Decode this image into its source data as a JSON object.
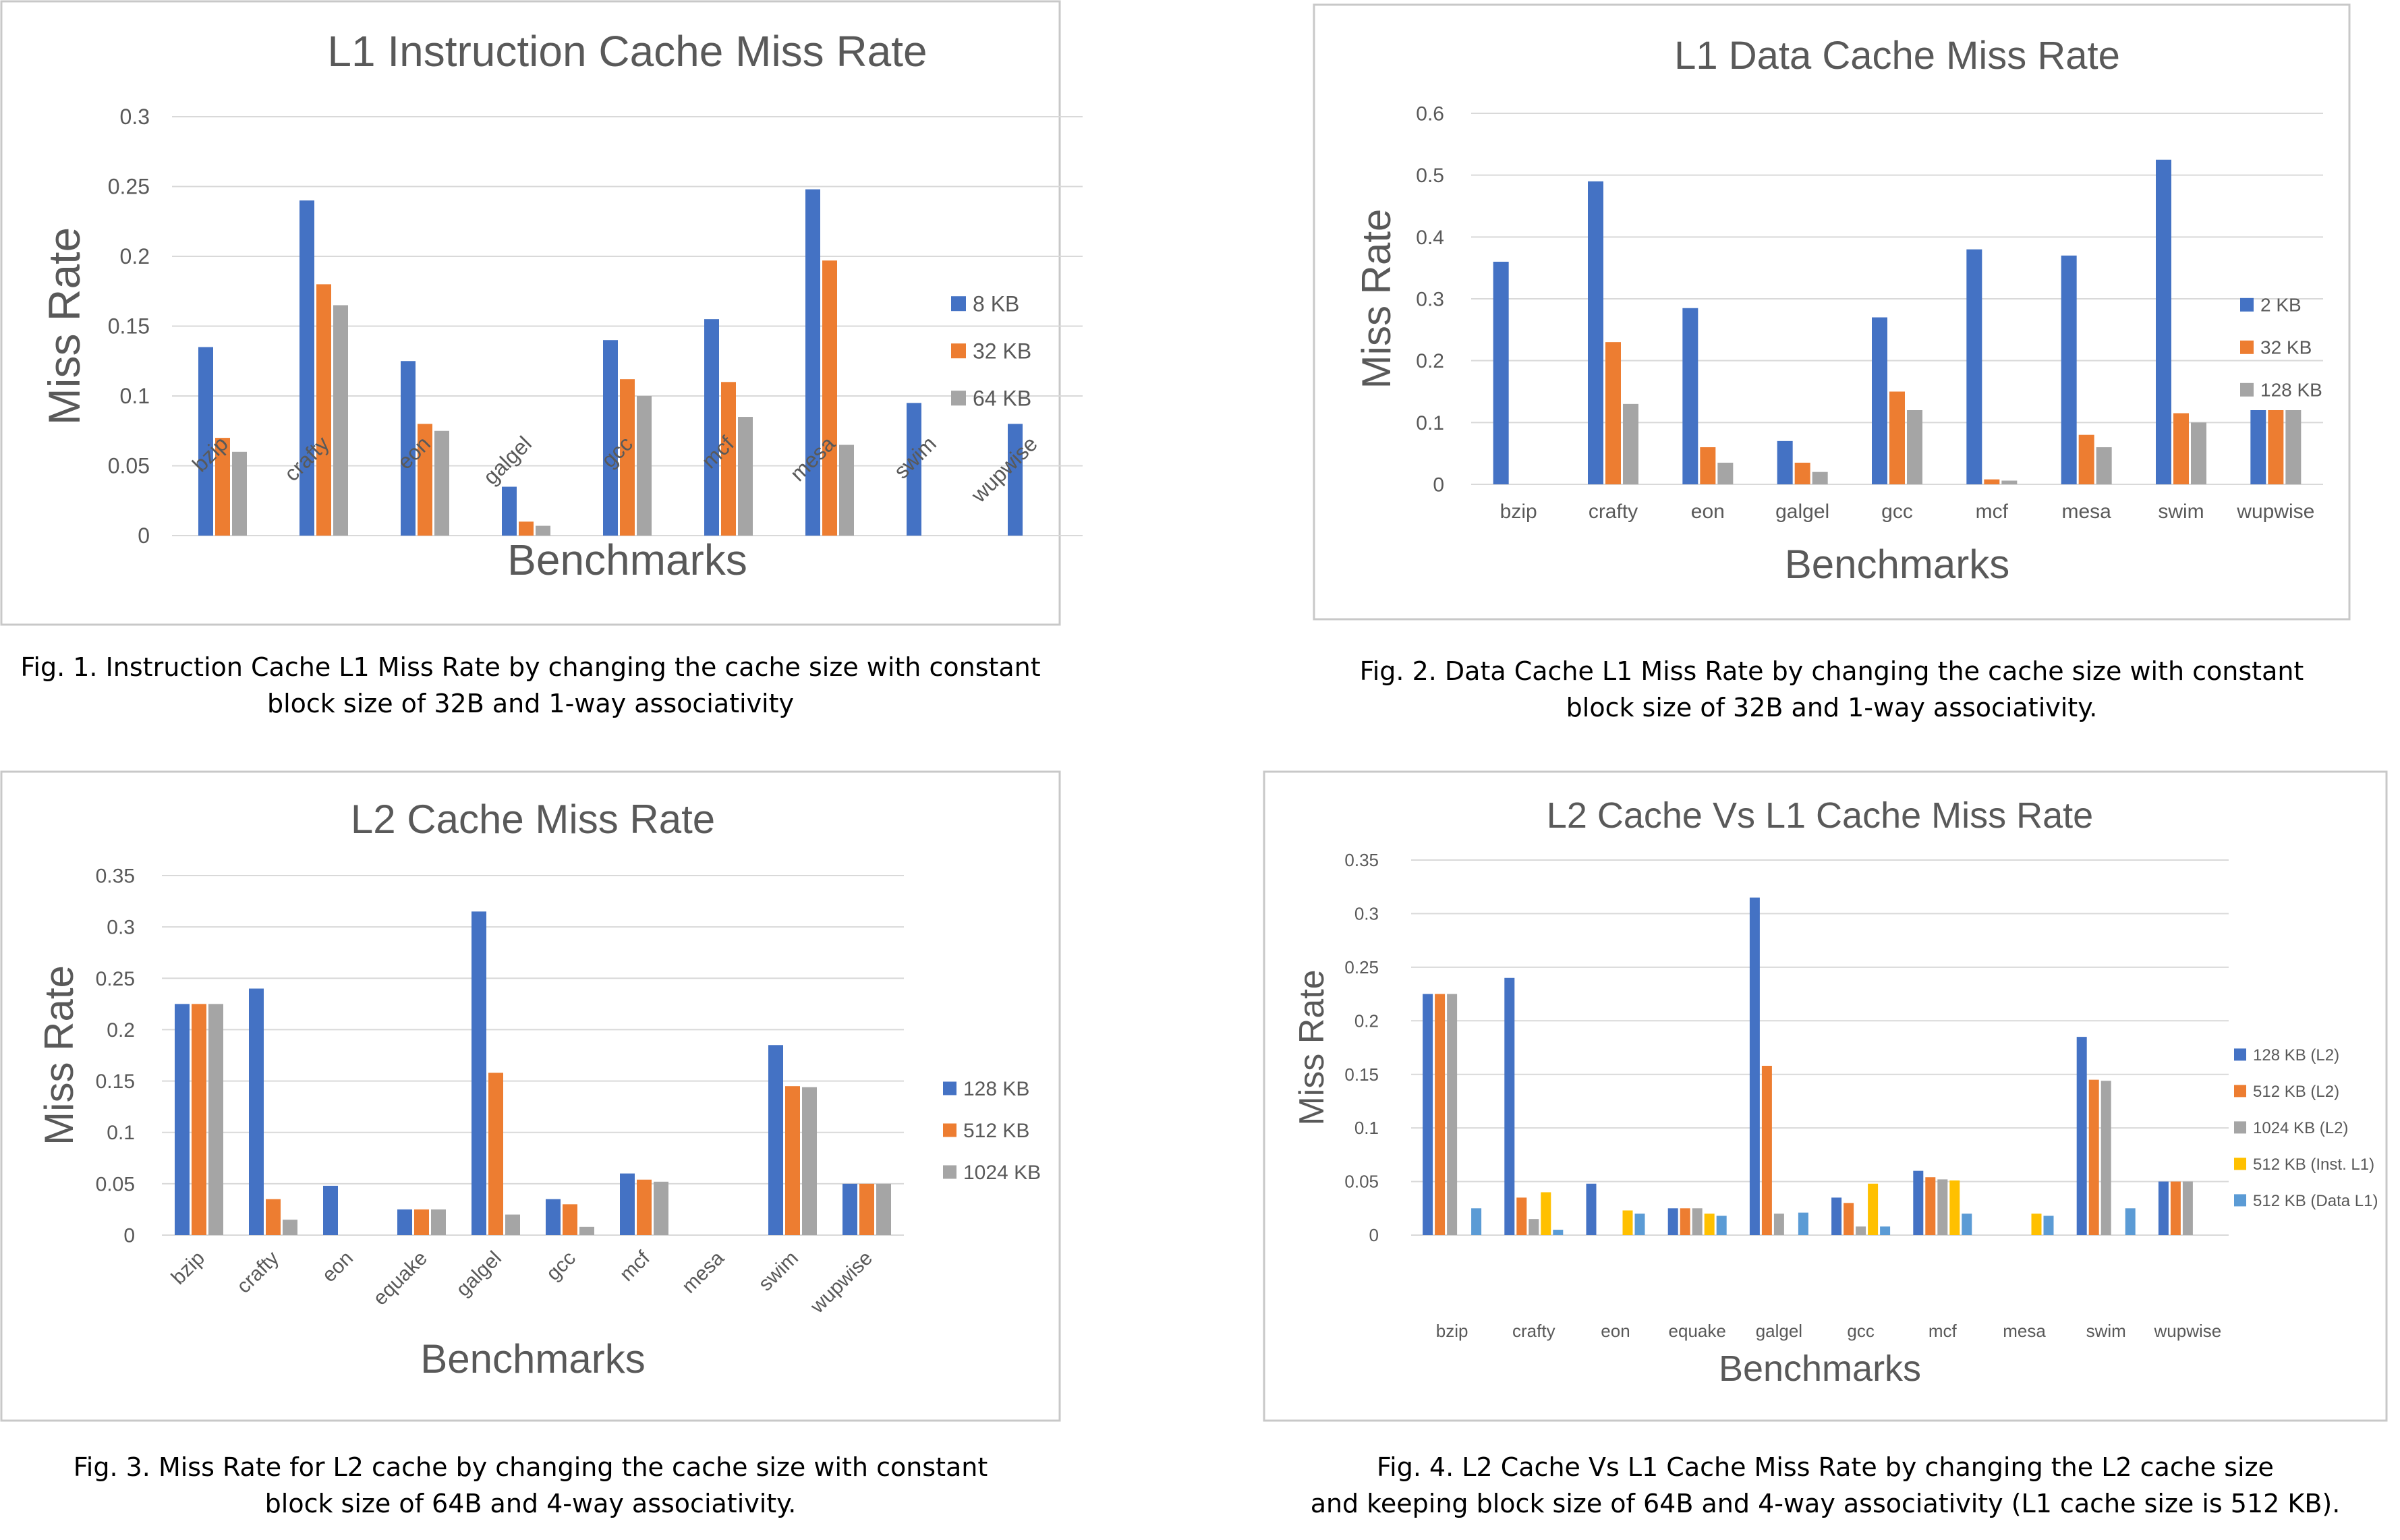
{
  "chart_data": [
    {
      "type": "bar",
      "title": "L1 Instruction Cache Miss Rate",
      "xlabel": "Benchmarks",
      "ylabel": "Miss Rate",
      "ylim": [
        0,
        0.3
      ],
      "yticks": [
        "0",
        "0.05",
        "0.1",
        "0.15",
        "0.2",
        "0.25",
        "0.3"
      ],
      "grid": true,
      "legend_position": "right",
      "rotated_xlabels": true,
      "categories": [
        "bzip",
        "crafty",
        "eon",
        "galgel",
        "gcc",
        "mcf",
        "mesa",
        "swim",
        "wupwise"
      ],
      "series": [
        {
          "name": "8 KB",
          "color": "#4472C4",
          "values": [
            0.135,
            0.24,
            0.125,
            0.035,
            0.14,
            0.155,
            0.248,
            0.095,
            0.08
          ]
        },
        {
          "name": "32 KB",
          "color": "#ED7D31",
          "values": [
            0.07,
            0.18,
            0.08,
            0.01,
            0.112,
            0.11,
            0.197,
            0,
            0
          ]
        },
        {
          "name": "64 KB",
          "color": "#A5A5A5",
          "values": [
            0.06,
            0.165,
            0.075,
            0.007,
            0.1,
            0.085,
            0.065,
            0,
            0
          ]
        }
      ]
    },
    {
      "type": "bar",
      "title": "L1 Data Cache Miss Rate",
      "xlabel": "Benchmarks",
      "ylabel": "Miss Rate",
      "ylim": [
        0,
        0.6
      ],
      "yticks": [
        "0",
        "0.1",
        "0.2",
        "0.3",
        "0.4",
        "0.5",
        "0.6"
      ],
      "grid": true,
      "legend_position": "right",
      "rotated_xlabels": false,
      "categories": [
        "bzip",
        "crafty",
        "eon",
        "galgel",
        "gcc",
        "mcf",
        "mesa",
        "swim",
        "wupwise"
      ],
      "series": [
        {
          "name": "2 KB",
          "color": "#4472C4",
          "values": [
            0.36,
            0.49,
            0.285,
            0.07,
            0.27,
            0.38,
            0.37,
            0.525,
            0.12
          ]
        },
        {
          "name": "32 KB",
          "color": "#ED7D31",
          "values": [
            0,
            0.23,
            0.06,
            0.035,
            0.15,
            0.008,
            0.08,
            0.115,
            0.12
          ]
        },
        {
          "name": "128 KB",
          "color": "#A5A5A5",
          "values": [
            0,
            0.13,
            0.035,
            0.02,
            0.12,
            0.006,
            0.06,
            0.1,
            0.12
          ]
        }
      ]
    },
    {
      "type": "bar",
      "title": "L2 Cache Miss Rate",
      "xlabel": "Benchmarks",
      "ylabel": "Miss Rate",
      "ylim": [
        0,
        0.35
      ],
      "yticks": [
        "0",
        "0.05",
        "0.1",
        "0.15",
        "0.2",
        "0.25",
        "0.3",
        "0.35"
      ],
      "grid": true,
      "legend_position": "right",
      "rotated_xlabels": true,
      "categories": [
        "bzip",
        "crafty",
        "eon",
        "equake",
        "galgel",
        "gcc",
        "mcf",
        "mesa",
        "swim",
        "wupwise"
      ],
      "series": [
        {
          "name": "128 KB",
          "color": "#4472C4",
          "values": [
            0.225,
            0.24,
            0.048,
            0.025,
            0.315,
            0.035,
            0.06,
            0,
            0.185,
            0.05
          ]
        },
        {
          "name": "512 KB",
          "color": "#ED7D31",
          "values": [
            0.225,
            0.035,
            0,
            0.025,
            0.158,
            0.03,
            0.054,
            0,
            0.145,
            0.05
          ]
        },
        {
          "name": "1024 KB",
          "color": "#A5A5A5",
          "values": [
            0.225,
            0.015,
            0,
            0.025,
            0.02,
            0.008,
            0.052,
            0,
            0.144,
            0.05
          ]
        }
      ]
    },
    {
      "type": "bar",
      "title": "L2 Cache Vs L1 Cache  Miss Rate",
      "xlabel": "Benchmarks",
      "ylabel": "Miss Rate",
      "ylim": [
        0,
        0.35
      ],
      "yticks": [
        "0",
        "0.05",
        "0.1",
        "0.15",
        "0.2",
        "0.25",
        "0.3",
        "0.35"
      ],
      "grid": true,
      "legend_position": "right",
      "rotated_xlabels": false,
      "categories": [
        "bzip",
        "crafty",
        "eon",
        "equake",
        "galgel",
        "gcc",
        "mcf",
        "mesa",
        "swim",
        "wupwise"
      ],
      "series": [
        {
          "name": "128 KB (L2)",
          "color": "#4472C4",
          "values": [
            0.225,
            0.24,
            0.048,
            0.025,
            0.315,
            0.035,
            0.06,
            0,
            0.185,
            0.05
          ]
        },
        {
          "name": "512 KB (L2)",
          "color": "#ED7D31",
          "values": [
            0.225,
            0.035,
            0,
            0.025,
            0.158,
            0.03,
            0.054,
            0,
            0.145,
            0.05
          ]
        },
        {
          "name": "1024 KB (L2)",
          "color": "#A5A5A5",
          "values": [
            0.225,
            0.015,
            0,
            0.025,
            0.02,
            0.008,
            0.052,
            0,
            0.144,
            0.05
          ]
        },
        {
          "name": "512 KB (Inst. L1)",
          "color": "#FFC000",
          "values": [
            0,
            0.04,
            0.023,
            0.02,
            0,
            0.048,
            0.051,
            0.02,
            0,
            0
          ]
        },
        {
          "name": "512 KB (Data L1)",
          "color": "#5B9BD5",
          "values": [
            0.025,
            0.005,
            0.02,
            0.018,
            0.021,
            0.008,
            0.02,
            0.018,
            0.025,
            0
          ]
        }
      ]
    }
  ],
  "captions": [
    {
      "line1": "Fig. 1. Instruction Cache L1 Miss Rate by changing the cache size with constant",
      "line2": "block size of 32B and 1-way associativity"
    },
    {
      "line1": "Fig. 2. Data Cache L1 Miss Rate by changing the cache size with constant",
      "line2": "block size of 32B and 1-way associativity."
    },
    {
      "line1": "Fig. 3. Miss Rate for L2 cache by changing the cache size with constant",
      "line2": "block size of 64B and 4-way associativity."
    },
    {
      "line1": "Fig. 4. L2 Cache Vs L1 Cache Miss Rate by changing the L2 cache size",
      "line2": "and keeping block size of 64B and 4-way associativity (L1 cache size is 512 KB)."
    }
  ]
}
